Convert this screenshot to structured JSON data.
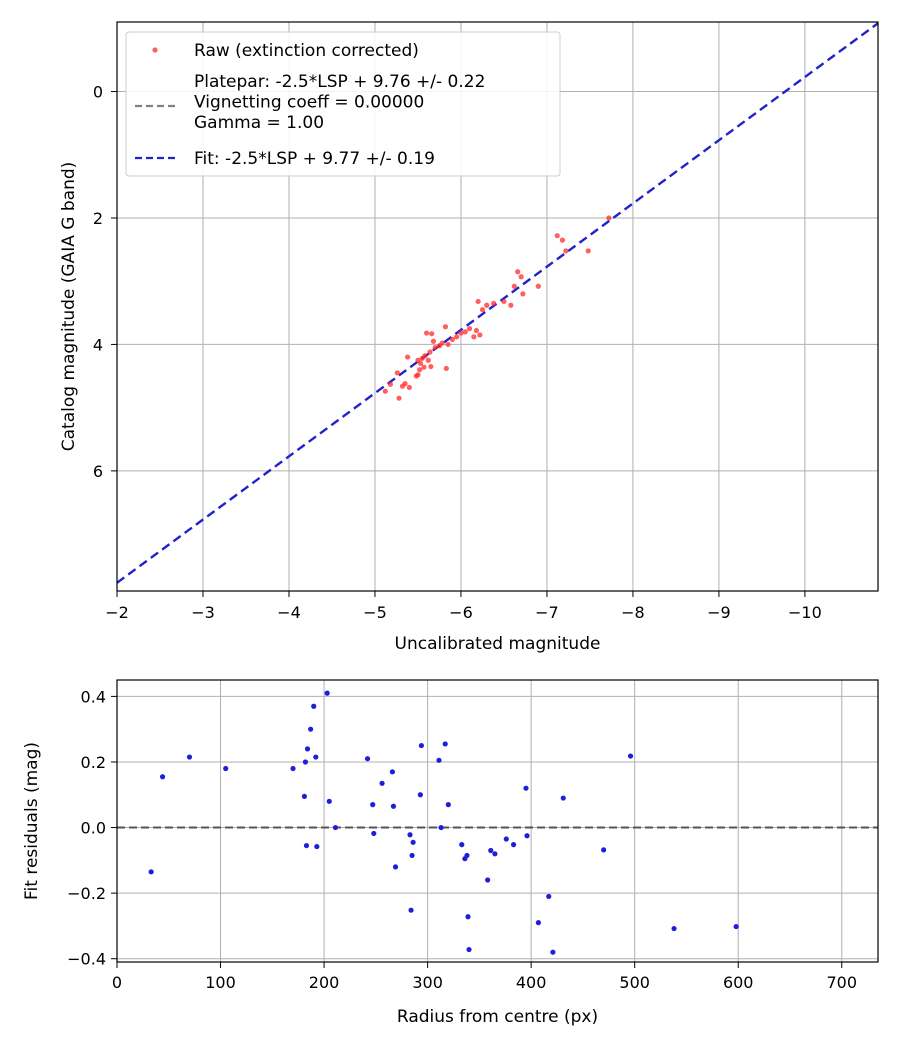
{
  "chart_data": [
    {
      "type": "scatter",
      "xlabel": "Uncalibrated magnitude",
      "ylabel": "Catalog magnitude (GAIA G band)",
      "xlim": [
        -2,
        -10.85
      ],
      "ylim": [
        7.9,
        -1.1
      ],
      "x_reversed": true,
      "y_reversed": true,
      "xticks": [
        -2,
        -3,
        -4,
        -5,
        -6,
        -7,
        -8,
        -9,
        -10
      ],
      "xtick_labels": [
        "−2",
        "−3",
        "−4",
        "−5",
        "−6",
        "−7",
        "−8",
        "−9",
        "−10"
      ],
      "yticks": [
        0,
        2,
        4,
        6
      ],
      "ytick_labels": [
        "0",
        "2",
        "4",
        "6"
      ],
      "grid": true,
      "legend_position": "top-left",
      "series": [
        {
          "name": "Raw (extinction corrected)",
          "kind": "scatter",
          "color": "#ff2a2a",
          "points": [
            [
              -5.12,
              4.74
            ],
            [
              -5.18,
              4.63
            ],
            [
              -5.26,
              4.45
            ],
            [
              -5.28,
              4.85
            ],
            [
              -5.32,
              4.66
            ],
            [
              -5.35,
              4.62
            ],
            [
              -5.38,
              4.2
            ],
            [
              -5.4,
              4.68
            ],
            [
              -5.48,
              4.5
            ],
            [
              -5.5,
              4.25
            ],
            [
              -5.5,
              4.48
            ],
            [
              -5.52,
              4.4
            ],
            [
              -5.53,
              4.3
            ],
            [
              -5.55,
              4.22
            ],
            [
              -5.57,
              4.36
            ],
            [
              -5.58,
              4.18
            ],
            [
              -5.6,
              3.82
            ],
            [
              -5.62,
              4.25
            ],
            [
              -5.64,
              4.12
            ],
            [
              -5.65,
              4.35
            ],
            [
              -5.66,
              3.83
            ],
            [
              -5.68,
              3.95
            ],
            [
              -5.7,
              4.05
            ],
            [
              -5.75,
              4.02
            ],
            [
              -5.78,
              3.98
            ],
            [
              -5.82,
              3.72
            ],
            [
              -5.83,
              4.38
            ],
            [
              -5.85,
              4.0
            ],
            [
              -5.9,
              3.92
            ],
            [
              -5.95,
              3.88
            ],
            [
              -6.0,
              3.82
            ],
            [
              -6.05,
              3.8
            ],
            [
              -6.1,
              3.75
            ],
            [
              -6.15,
              3.88
            ],
            [
              -6.18,
              3.78
            ],
            [
              -6.2,
              3.32
            ],
            [
              -6.22,
              3.85
            ],
            [
              -6.25,
              3.45
            ],
            [
              -6.3,
              3.38
            ],
            [
              -6.38,
              3.35
            ],
            [
              -6.5,
              3.32
            ],
            [
              -6.58,
              3.38
            ],
            [
              -6.62,
              3.08
            ],
            [
              -6.66,
              2.85
            ],
            [
              -6.7,
              2.93
            ],
            [
              -6.72,
              3.2
            ],
            [
              -6.9,
              3.08
            ],
            [
              -7.12,
              2.28
            ],
            [
              -7.18,
              2.35
            ],
            [
              -7.22,
              2.52
            ],
            [
              -7.48,
              2.52
            ],
            [
              -7.72,
              2.0
            ]
          ]
        },
        {
          "name": "Platepar: -2.5*LSP + 9.76 +/- 0.22\nVignetting coeff = 0.00000\nGamma = 1.00",
          "kind": "line",
          "color": "#808080",
          "hidden": true
        },
        {
          "name": "Fit: -2.5*LSP + 9.77 +/- 0.19",
          "kind": "line",
          "color": "#2222cc",
          "dashed": true,
          "offset": 9.77
        }
      ]
    },
    {
      "type": "scatter",
      "xlabel": "Radius from centre (px)",
      "ylabel": "Fit residuals (mag)",
      "xlim": [
        0,
        735
      ],
      "ylim": [
        -0.41,
        0.45
      ],
      "xticks": [
        0,
        100,
        200,
        300,
        400,
        500,
        600,
        700
      ],
      "xtick_labels": [
        "0",
        "100",
        "200",
        "300",
        "400",
        "500",
        "600",
        "700"
      ],
      "yticks": [
        0.4,
        0.2,
        0.0,
        -0.2,
        -0.4
      ],
      "ytick_labels": [
        "0.4",
        "0.2",
        "0.0",
        "−0.2",
        "−0.4"
      ],
      "grid": true,
      "zero_line": true,
      "series": [
        {
          "name": "Residuals",
          "kind": "scatter",
          "color": "#1f1fd8",
          "points": [
            [
              33,
              -0.135
            ],
            [
              44,
              0.155
            ],
            [
              70,
              0.215
            ],
            [
              105,
              0.18
            ],
            [
              170,
              0.18
            ],
            [
              181,
              0.095
            ],
            [
              182,
              0.2
            ],
            [
              183,
              -0.055
            ],
            [
              184,
              0.24
            ],
            [
              187,
              0.3
            ],
            [
              190,
              0.37
            ],
            [
              192,
              0.215
            ],
            [
              193,
              -0.058
            ],
            [
              203,
              0.41
            ],
            [
              205,
              0.08
            ],
            [
              211,
              0.0
            ],
            [
              242,
              0.21
            ],
            [
              247,
              0.07
            ],
            [
              248,
              -0.018
            ],
            [
              256,
              0.135
            ],
            [
              266,
              0.17
            ],
            [
              267,
              0.065
            ],
            [
              269,
              -0.12
            ],
            [
              283,
              -0.022
            ],
            [
              284,
              -0.252
            ],
            [
              285,
              -0.085
            ],
            [
              286,
              -0.045
            ],
            [
              293,
              0.1
            ],
            [
              294,
              0.25
            ],
            [
              311,
              0.205
            ],
            [
              313,
              0.0
            ],
            [
              317,
              0.255
            ],
            [
              320,
              0.07
            ],
            [
              333,
              -0.052
            ],
            [
              336,
              -0.095
            ],
            [
              338,
              -0.085
            ],
            [
              339,
              -0.272
            ],
            [
              340,
              -0.372
            ],
            [
              358,
              -0.16
            ],
            [
              361,
              -0.07
            ],
            [
              365,
              -0.08
            ],
            [
              376,
              -0.035
            ],
            [
              383,
              -0.052
            ],
            [
              395,
              0.12
            ],
            [
              396,
              -0.025
            ],
            [
              407,
              -0.29
            ],
            [
              417,
              -0.21
            ],
            [
              421,
              -0.38
            ],
            [
              431,
              0.09
            ],
            [
              470,
              -0.068
            ],
            [
              496,
              0.218
            ],
            [
              538,
              -0.308
            ],
            [
              598,
              -0.302
            ]
          ]
        }
      ]
    }
  ]
}
